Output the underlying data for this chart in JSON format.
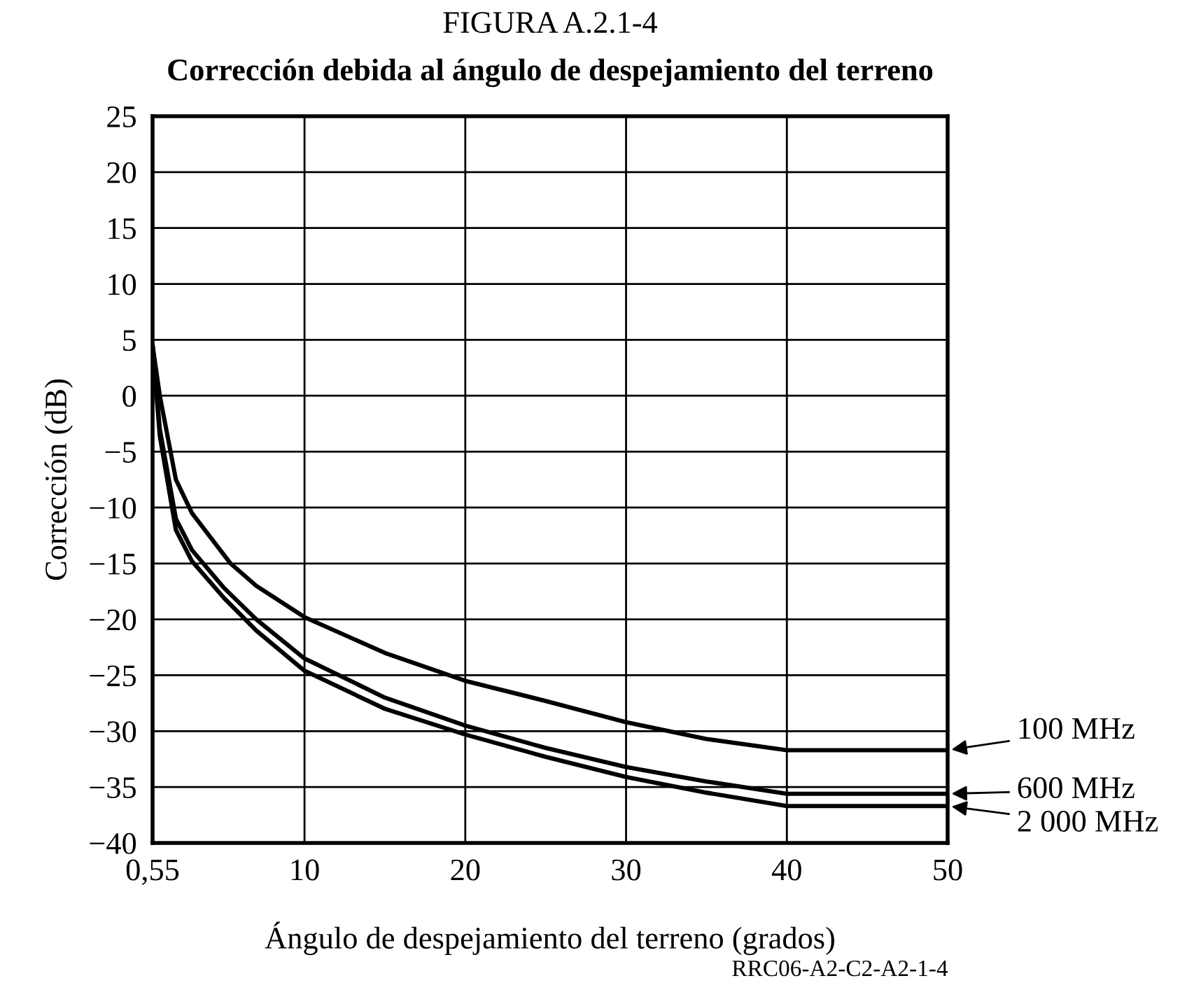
{
  "chart_data": {
    "type": "line",
    "title": "FIGURA A.2.1-4",
    "subtitle": "Corrección debida al ángulo de despejamiento del terreno",
    "xlabel": "Ángulo de despejamiento del terreno (grados)",
    "ylabel": "Corrección (dB)",
    "annotations": [
      "RRC06-A2-C2-A2-1-4"
    ],
    "xlim": [
      0.55,
      50
    ],
    "xticks": [
      {
        "value": 0.55,
        "label": "0,55"
      },
      10,
      20,
      30,
      40,
      50
    ],
    "ylim": [
      -40,
      25
    ],
    "yticks": [
      {
        "value": -40,
        "label": "−40"
      },
      {
        "value": -35,
        "label": "−35"
      },
      {
        "value": -30,
        "label": "−30"
      },
      {
        "value": -25,
        "label": "−25"
      },
      {
        "value": -20,
        "label": "−20"
      },
      {
        "value": -15,
        "label": "−15"
      },
      {
        "value": -10,
        "label": "−10"
      },
      {
        "value": -5,
        "label": "−5"
      },
      0,
      5,
      10,
      15,
      20,
      25
    ],
    "grid": true,
    "legend": "right",
    "marker": "none",
    "line_style": "solid",
    "series": [
      {
        "name": "100 MHz",
        "color": "#000000",
        "x": [
          0.55,
          1,
          2,
          3,
          5.4,
          7,
          10,
          15,
          20,
          25,
          30,
          35,
          40,
          50
        ],
        "values": [
          4.5,
          0,
          -7.5,
          -10.5,
          -15,
          -17,
          -19.8,
          -23,
          -25.5,
          -27.3,
          -29.2,
          -30.7,
          -31.7,
          -31.7
        ]
      },
      {
        "name": "600 MHz",
        "color": "#000000",
        "x": [
          0.55,
          1,
          2,
          3,
          5,
          7,
          10,
          15,
          20,
          25,
          30,
          35,
          40,
          50
        ],
        "values": [
          4.5,
          -3,
          -11,
          -13.8,
          -17.2,
          -20,
          -23.5,
          -27,
          -29.5,
          -31.5,
          -33.2,
          -34.5,
          -35.6,
          -35.6
        ]
      },
      {
        "name": "2 000 MHz",
        "color": "#000000",
        "x": [
          0.55,
          1,
          2,
          3,
          5,
          7,
          10,
          15,
          20,
          25,
          30,
          35,
          40,
          50
        ],
        "values": [
          4.5,
          -3.6,
          -12,
          -14.8,
          -18.1,
          -21,
          -24.6,
          -28,
          -30.3,
          -32.3,
          -34.1,
          -35.5,
          -36.7,
          -36.7
        ]
      }
    ]
  }
}
